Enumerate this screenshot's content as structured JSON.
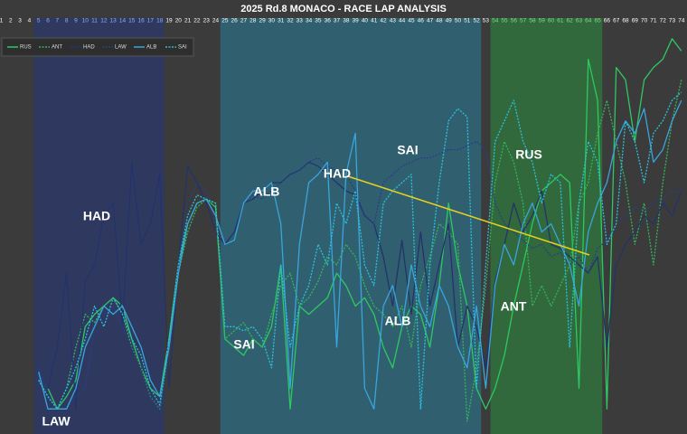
{
  "chart_data": {
    "type": "line",
    "title": "2025 Rd.8 MONACO - RACE LAP ANALYSIS",
    "x": [
      1,
      2,
      3,
      4,
      5,
      6,
      7,
      8,
      9,
      10,
      11,
      12,
      13,
      14,
      15,
      16,
      17,
      18,
      19,
      20,
      21,
      22,
      23,
      24,
      25,
      26,
      27,
      28,
      29,
      30,
      31,
      32,
      33,
      34,
      35,
      36,
      37,
      38,
      39,
      40,
      41,
      42,
      43,
      44,
      45,
      46,
      47,
      48,
      49,
      50,
      51,
      52,
      53,
      54,
      55,
      56,
      57,
      58,
      59,
      60,
      61,
      62,
      63,
      64,
      65,
      66,
      67,
      68,
      69,
      70,
      71,
      72,
      73,
      74
    ],
    "xlim": [
      1,
      74.5
    ],
    "ylim": [
      0,
      100
    ],
    "stint_bands": [
      {
        "from": 5,
        "to": 18,
        "color": "#2c3a6e"
      },
      {
        "from": 25,
        "to": 52,
        "color": "#2e6e82"
      },
      {
        "from": 54,
        "to": 65,
        "color": "#2f7a3e"
      }
    ],
    "series": [
      {
        "name": "RUS",
        "color": "#2ec860",
        "style": "solid",
        "values": [
          null,
          null,
          null,
          null,
          14,
          10,
          5,
          8,
          12,
          25,
          28,
          30,
          32,
          30,
          22,
          15,
          10,
          8,
          22,
          40,
          50,
          55,
          56,
          54,
          22,
          20,
          18,
          22,
          20,
          25,
          40,
          5,
          30,
          28,
          30,
          32,
          38,
          35,
          30,
          32,
          28,
          20,
          15,
          25,
          30,
          28,
          20,
          35,
          55,
          40,
          30,
          10,
          5,
          10,
          18,
          30,
          40,
          50,
          58,
          60,
          62,
          60,
          10,
          90,
          80,
          5,
          88,
          85,
          70,
          85,
          88,
          90,
          95,
          92
        ]
      },
      {
        "name": "ANT",
        "color": "#34b458",
        "style": "dotted",
        "values": [
          null,
          null,
          null,
          null,
          12,
          8,
          5,
          10,
          20,
          28,
          26,
          30,
          32,
          28,
          20,
          15,
          8,
          5,
          20,
          38,
          48,
          54,
          56,
          55,
          22,
          24,
          26,
          22,
          20,
          28,
          35,
          38,
          30,
          32,
          36,
          42,
          40,
          45,
          42,
          35,
          30,
          28,
          25,
          30,
          20,
          35,
          42,
          50,
          48,
          45,
          2,
          15,
          35,
          60,
          70,
          65,
          55,
          30,
          35,
          30,
          35,
          40,
          55,
          60,
          72,
          80,
          70,
          60,
          45,
          55,
          40,
          60,
          75,
          85
        ]
      },
      {
        "name": "HAD",
        "color": "#23336a",
        "style": "solid",
        "values": [
          null,
          null,
          null,
          null,
          14,
          10,
          20,
          38,
          5,
          36,
          40,
          52,
          55,
          25,
          65,
          45,
          50,
          62,
          10,
          40,
          64,
          60,
          55,
          48,
          45,
          48,
          55,
          56,
          58,
          60,
          60,
          62,
          63,
          65,
          64,
          62,
          60,
          58,
          57,
          52,
          50,
          42,
          30,
          46,
          28,
          48,
          30,
          40,
          50,
          20,
          30,
          25,
          15,
          36,
          45,
          55,
          48,
          52,
          58,
          45,
          44,
          42,
          40,
          38,
          42,
          20,
          40,
          45,
          48,
          52,
          50,
          55,
          52,
          58
        ]
      },
      {
        "name": "LAW",
        "color": "#2b3d86",
        "style": "dotted",
        "values": [
          null,
          null,
          null,
          null,
          15,
          8,
          5,
          5,
          8,
          10,
          25,
          28,
          30,
          25,
          20,
          15,
          8,
          5,
          18,
          40,
          55,
          60,
          58,
          50,
          45,
          46,
          55,
          57,
          56,
          58,
          60,
          62,
          63,
          65,
          66,
          64,
          63,
          62,
          58,
          52,
          50,
          60,
          62,
          64,
          65,
          66,
          66,
          67,
          68,
          68,
          69,
          70,
          68,
          55,
          50,
          48,
          46,
          44,
          45,
          42,
          43,
          40,
          42,
          38,
          44,
          46,
          50,
          52,
          54,
          53,
          55,
          56,
          58,
          58
        ]
      },
      {
        "name": "ALB",
        "color": "#3aa4dc",
        "style": "solid",
        "values": [
          null,
          null,
          null,
          null,
          14,
          5,
          5,
          5,
          10,
          20,
          25,
          30,
          28,
          30,
          25,
          20,
          12,
          8,
          20,
          38,
          50,
          55,
          56,
          52,
          45,
          46,
          55,
          58,
          58,
          60,
          50,
          10,
          45,
          60,
          62,
          65,
          20,
          62,
          72,
          10,
          5,
          30,
          35,
          25,
          40,
          30,
          25,
          35,
          30,
          20,
          15,
          30,
          10,
          35,
          45,
          40,
          50,
          55,
          48,
          50,
          45,
          40,
          30,
          48,
          55,
          60,
          70,
          75,
          72,
          78,
          65,
          68,
          75,
          80
        ]
      },
      {
        "name": "SAI",
        "color": "#2cc0dc",
        "style": "dotted",
        "values": [
          null,
          null,
          null,
          null,
          12,
          8,
          5,
          10,
          15,
          22,
          30,
          25,
          32,
          28,
          22,
          18,
          10,
          6,
          22,
          40,
          52,
          57,
          56,
          55,
          25,
          25,
          24,
          25,
          22,
          15,
          40,
          20,
          30,
          35,
          45,
          40,
          55,
          50,
          58,
          40,
          35,
          55,
          58,
          60,
          62,
          5,
          40,
          60,
          75,
          78,
          76,
          10,
          40,
          70,
          75,
          80,
          70,
          65,
          55,
          62,
          60,
          20,
          55,
          70,
          65,
          45,
          50,
          75,
          70,
          60,
          72,
          75,
          80,
          82
        ]
      }
    ],
    "annotations": [
      "HAD",
      "ALB",
      "HAD",
      "SAI",
      "RUS",
      "SAI",
      "ALB",
      "ANT",
      "LAW"
    ]
  }
}
